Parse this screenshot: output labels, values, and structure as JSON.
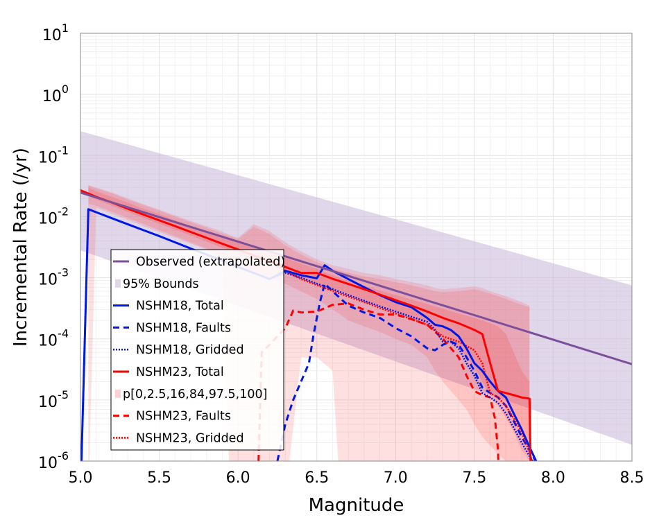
{
  "chart_data": {
    "type": "line",
    "title": "",
    "xlabel": "Magnitude",
    "ylabel": "Incremental Rate (/yr)",
    "xlim": [
      5.0,
      8.5
    ],
    "ylim": [
      1e-06,
      10
    ],
    "yscale": "log",
    "xticks": [
      "5.0",
      "5.5",
      "6.0",
      "6.5",
      "7.0",
      "7.5",
      "8.0",
      "8.5"
    ],
    "yticks": [
      {
        "base": "10",
        "exp": "-6",
        "value": 1e-06
      },
      {
        "base": "10",
        "exp": "-5",
        "value": 1e-05
      },
      {
        "base": "10",
        "exp": "-4",
        "value": 0.0001
      },
      {
        "base": "10",
        "exp": "-3",
        "value": 0.001
      },
      {
        "base": "10",
        "exp": "-2",
        "value": 0.01
      },
      {
        "base": "10",
        "exp": "-1",
        "value": 0.1
      },
      {
        "base": "10",
        "exp": "0",
        "value": 1
      },
      {
        "base": "10",
        "exp": "1",
        "value": 10
      }
    ],
    "grid": true,
    "legend_position": "lower-left",
    "series": [
      {
        "name": "Observed (extrapolated)",
        "kind": "line",
        "color": "#7b4f9a",
        "dash": "solid",
        "x": [
          5.0,
          8.5
        ],
        "y": [
          0.0247,
          3.85e-05
        ]
      },
      {
        "name": "95% Bounds",
        "kind": "band",
        "color": "#c8b7d8",
        "x": [
          5.0,
          8.5
        ],
        "upper": [
          0.25,
          0.00075
        ],
        "lower": [
          0.00281,
          1.85e-06
        ]
      },
      {
        "name": "NSHM18, Total",
        "kind": "line",
        "color": "#0018e6",
        "dash": "solid",
        "x": [
          5.0,
          5.05,
          5.1,
          5.2,
          5.3,
          5.4,
          5.5,
          5.6,
          5.7,
          5.8,
          5.9,
          6.0,
          6.1,
          6.2,
          6.3,
          6.4,
          6.5,
          6.55,
          6.6,
          6.7,
          6.8,
          6.9,
          7.0,
          7.1,
          7.2,
          7.25,
          7.3,
          7.35,
          7.4,
          7.45,
          7.5,
          7.55,
          7.6,
          7.65,
          7.7,
          7.75,
          7.8,
          7.85,
          7.9
        ],
        "y": [
          1e-07,
          0.0132,
          0.0118,
          0.0094,
          0.0075,
          0.006,
          0.0048,
          0.0038,
          0.003,
          0.0024,
          0.0019,
          0.0015,
          0.0012,
          0.00095,
          0.0013,
          0.0011,
          0.00098,
          0.0016,
          0.0013,
          0.00095,
          0.0007,
          0.00052,
          0.0004,
          0.00033,
          0.00022,
          0.00017,
          0.00016,
          0.00014,
          0.00011,
          7e-05,
          4e-05,
          3e-05,
          2e-05,
          1.4e-05,
          1.1e-05,
          6e-06,
          3.3e-06,
          1.7e-06,
          9e-07
        ]
      },
      {
        "name": "NSHM18, Faults",
        "kind": "line",
        "color": "#0018e6",
        "dash": "dashed",
        "x": [
          6.25,
          6.3,
          6.35,
          6.4,
          6.45,
          6.48,
          6.52,
          6.55,
          6.6,
          6.7,
          6.8,
          6.9,
          7.0,
          7.1,
          7.2,
          7.25,
          7.3,
          7.35,
          7.4,
          7.45,
          7.5,
          7.55,
          7.6,
          7.65,
          7.7,
          7.75,
          7.8,
          7.85,
          7.9
        ],
        "y": [
          1e-06,
          4e-06,
          1e-05,
          2e-05,
          4e-05,
          0.00012,
          0.0004,
          0.0008,
          0.0006,
          0.00035,
          0.00027,
          0.00022,
          0.00015,
          0.00011,
          7e-05,
          6.5e-05,
          8e-05,
          9e-05,
          8e-05,
          5e-05,
          3e-05,
          1.6e-05,
          1.3e-05,
          1.1e-05,
          8e-06,
          4.5e-06,
          2.5e-06,
          1.5e-06,
          9e-07
        ]
      },
      {
        "name": "NSHM18, Gridded",
        "kind": "line",
        "color": "#0018e6",
        "dash": "dotted",
        "x": [
          5.0,
          5.05,
          5.1,
          5.2,
          5.3,
          5.4,
          5.5,
          5.6,
          5.7,
          5.8,
          5.9,
          6.0,
          6.1,
          6.2,
          6.3,
          6.4,
          6.5,
          6.6,
          6.7,
          6.8,
          6.9,
          7.0,
          7.1,
          7.2,
          7.25,
          7.3,
          7.35,
          7.4,
          7.45,
          7.5,
          7.55,
          7.6,
          7.65,
          7.7,
          7.75,
          7.8,
          7.85,
          7.9
        ],
        "y": [
          1e-07,
          0.0132,
          0.0118,
          0.0094,
          0.0075,
          0.006,
          0.0048,
          0.0038,
          0.003,
          0.0024,
          0.0019,
          0.0015,
          0.0012,
          0.00095,
          0.0012,
          0.001,
          0.0008,
          0.00065,
          0.00052,
          0.00042,
          0.00034,
          0.00028,
          0.00023,
          0.00019,
          0.00014,
          9e-05,
          9e-05,
          7e-05,
          4e-05,
          2.5e-05,
          1.3e-05,
          1.1e-05,
          9e-06,
          6e-06,
          3.5e-06,
          2e-06,
          1.2e-06,
          8e-07
        ]
      },
      {
        "name": "NSHM23, Total",
        "kind": "line",
        "color": "#ff0000",
        "dash": "solid",
        "x": [
          5.0,
          5.1,
          5.2,
          5.3,
          5.4,
          5.5,
          5.6,
          5.7,
          5.8,
          5.9,
          6.0,
          6.1,
          6.2,
          6.3,
          6.4,
          6.5,
          6.6,
          6.7,
          6.8,
          6.9,
          7.0,
          7.1,
          7.2,
          7.3,
          7.4,
          7.5,
          7.55,
          7.6,
          7.65,
          7.7,
          7.75,
          7.8,
          7.85,
          7.86
        ],
        "y": [
          0.027,
          0.021,
          0.017,
          0.0135,
          0.0108,
          0.0087,
          0.007,
          0.0056,
          0.0045,
          0.0036,
          0.0029,
          0.0023,
          0.0019,
          0.0015,
          0.0012,
          0.0012,
          0.00096,
          0.00079,
          0.00065,
          0.00053,
          0.00043,
          0.00035,
          0.00028,
          0.00022,
          0.00018,
          0.00014,
          0.00012,
          4e-05,
          1.4e-05,
          1.3e-05,
          1.2e-05,
          1.1e-05,
          1.05e-05,
          1e-07
        ]
      },
      {
        "name": "NSHM23, Faults",
        "kind": "line",
        "color": "#ff0000",
        "dash": "dashed",
        "x": [
          6.13,
          6.15,
          6.2,
          6.25,
          6.3,
          6.35,
          6.4,
          6.5,
          6.6,
          6.7,
          6.8,
          6.9,
          7.0,
          7.1,
          7.2,
          7.3,
          7.4,
          7.45,
          7.5,
          7.55,
          7.6,
          7.63,
          7.65,
          7.66
        ],
        "y": [
          1e-06,
          6e-05,
          8e-05,
          0.00011,
          0.00015,
          0.00029,
          0.00027,
          0.00028,
          0.00036,
          0.00038,
          0.0003,
          0.00025,
          0.00025,
          0.00021,
          0.00017,
          0.0001,
          5e-05,
          2.5e-05,
          1.4e-05,
          1.2e-05,
          1.1e-05,
          5e-06,
          1.5e-06,
          1e-07
        ]
      },
      {
        "name": "NSHM23, Gridded",
        "kind": "line",
        "color": "#ff0000",
        "dash": "dotted",
        "x": [
          5.0,
          5.1,
          5.2,
          5.3,
          5.4,
          5.5,
          5.6,
          5.7,
          5.8,
          5.9,
          6.0,
          6.1,
          6.2,
          6.3,
          6.4,
          6.5,
          6.6,
          6.7,
          6.8,
          6.9,
          7.0,
          7.1,
          7.2,
          7.3,
          7.4,
          7.5,
          7.55,
          7.6,
          7.65,
          7.7,
          7.75,
          7.8,
          7.85,
          7.87
        ],
        "y": [
          0.027,
          0.021,
          0.017,
          0.0135,
          0.0108,
          0.0087,
          0.007,
          0.0056,
          0.0045,
          0.0036,
          0.0029,
          0.0023,
          0.0018,
          0.0013,
          0.00095,
          0.00076,
          0.00061,
          0.00049,
          0.0004,
          0.00032,
          0.00026,
          0.00021,
          0.00017,
          0.00011,
          9e-05,
          6.5e-05,
          4e-05,
          1.3e-05,
          1.1e-05,
          8e-06,
          5e-06,
          3e-06,
          1.4e-06,
          9e-07
        ]
      },
      {
        "name": "p[0,2.5,16,84,97.5,100]",
        "kind": "fractile-bands",
        "color": "#ff2020",
        "x": [
          5.05,
          5.1,
          5.2,
          5.3,
          5.4,
          5.5,
          5.6,
          5.7,
          5.8,
          5.9,
          5.95,
          6.0,
          6.1,
          6.2,
          6.3,
          6.4,
          6.5,
          6.6,
          6.65,
          6.7,
          6.8,
          6.9,
          7.0,
          7.1,
          7.2,
          7.25,
          7.3,
          7.4,
          7.45,
          7.5,
          7.55,
          7.6,
          7.65,
          7.7,
          7.75,
          7.8,
          7.85
        ],
        "p0": [
          1e-07,
          0.014,
          0.011,
          0.0088,
          0.007,
          0.0056,
          0.0045,
          0.0036,
          0.0029,
          0.0018,
          1e-07,
          1e-07,
          1e-07,
          1e-07,
          1e-07,
          5e-05,
          5e-05,
          3e-05,
          1e-07,
          1e-07,
          1e-07,
          1e-07,
          1e-07,
          1e-07,
          1e-07,
          1e-07,
          1e-07,
          1e-07,
          1e-07,
          1e-07,
          1e-07,
          1e-07,
          1e-07,
          1e-07,
          1e-07,
          1e-07,
          1e-07
        ],
        "p2_5": [
          0.016,
          0.015,
          0.012,
          0.0095,
          0.0076,
          0.006,
          0.0048,
          0.0038,
          0.003,
          0.0024,
          0.002,
          0.0016,
          0.0013,
          0.001,
          0.0008,
          0.0006,
          0.00045,
          0.0003,
          0.00025,
          0.0002,
          0.00016,
          0.00013,
          0.0001,
          8e-05,
          5e-05,
          3e-05,
          2e-05,
          1e-05,
          7e-06,
          4e-06,
          2.5e-06,
          1.8e-06,
          1.3e-06,
          1e-06,
          1e-07,
          1e-07,
          1e-07
        ],
        "p16": [
          0.022,
          0.019,
          0.015,
          0.012,
          0.0095,
          0.0076,
          0.0061,
          0.0049,
          0.0039,
          0.0031,
          0.0028,
          0.0025,
          0.002,
          0.0016,
          0.0013,
          0.001,
          0.0008,
          0.00065,
          0.00058,
          0.00052,
          0.00042,
          0.00034,
          0.00027,
          0.00021,
          0.00016,
          0.00013,
          0.0001,
          7e-05,
          5e-05,
          3.5e-05,
          2e-05,
          1.2e-05,
          8e-06,
          5e-06,
          3e-06,
          1.5e-06,
          1e-06
        ],
        "p84": [
          0.03,
          0.026,
          0.021,
          0.017,
          0.0135,
          0.011,
          0.0088,
          0.007,
          0.0057,
          0.0046,
          0.0042,
          0.0038,
          0.0031,
          0.0026,
          0.0021,
          0.0017,
          0.0014,
          0.0011,
          0.00098,
          0.00089,
          0.00074,
          0.00062,
          0.00052,
          0.00044,
          0.00037,
          0.00034,
          0.00031,
          0.00026,
          0.00024,
          0.00022,
          0.0002,
          0.00018,
          0.00016,
          0.00012,
          6e-05,
          3e-05,
          2e-05
        ],
        "p97_5": [
          0.032,
          0.029,
          0.024,
          0.019,
          0.0155,
          0.0125,
          0.01,
          0.0081,
          0.0066,
          0.0053,
          0.0048,
          0.0043,
          0.0068,
          0.0052,
          0.0034,
          0.0024,
          0.0018,
          0.0014,
          0.0013,
          0.0012,
          0.00105,
          0.00095,
          0.00085,
          0.00075,
          0.00065,
          0.0006,
          0.00058,
          0.0006,
          0.00062,
          0.00065,
          0.0006,
          0.00055,
          0.0005,
          0.00045,
          0.0004,
          0.00036,
          0.00033
        ],
        "p100": [
          0.033,
          0.03,
          0.025,
          0.02,
          0.016,
          0.013,
          0.0105,
          0.0085,
          0.007,
          0.0057,
          0.005,
          0.0045,
          0.0075,
          0.0058,
          0.0038,
          0.0027,
          0.002,
          0.0016,
          0.0015,
          0.0014,
          0.0012,
          0.0011,
          0.00095,
          0.00085,
          0.00075,
          0.00068,
          0.00065,
          0.00068,
          0.0007,
          0.00072,
          0.00068,
          0.0006,
          0.00055,
          0.0005,
          0.00045,
          0.0004,
          0.00035
        ]
      }
    ]
  }
}
